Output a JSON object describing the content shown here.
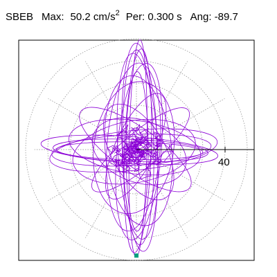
{
  "header": {
    "station": "SBEB",
    "max_label": "Max:",
    "max_value": "50.2",
    "max_unit": "cm/s",
    "max_unit_exp": "2",
    "per_label": "Per:",
    "per_value": "0.300 s",
    "ang_label": "Ang:",
    "ang_value": "-89.7"
  },
  "chart_data": {
    "type": "scatter",
    "description_free": true,
    "rings": [
      10,
      20,
      30,
      40,
      50
    ],
    "radial_lines_deg": [
      0,
      30,
      60,
      90,
      120,
      150,
      180,
      210,
      240,
      270,
      300,
      330
    ],
    "axis_tick_value": 40,
    "axis_tick_label": "40",
    "max_amplitude": 50.2,
    "trace_color": "#8b00d6",
    "grid_color": "#888888",
    "marker_color": "#00a080",
    "x_range": [
      -54,
      54
    ],
    "y_range": [
      -54,
      54
    ]
  }
}
